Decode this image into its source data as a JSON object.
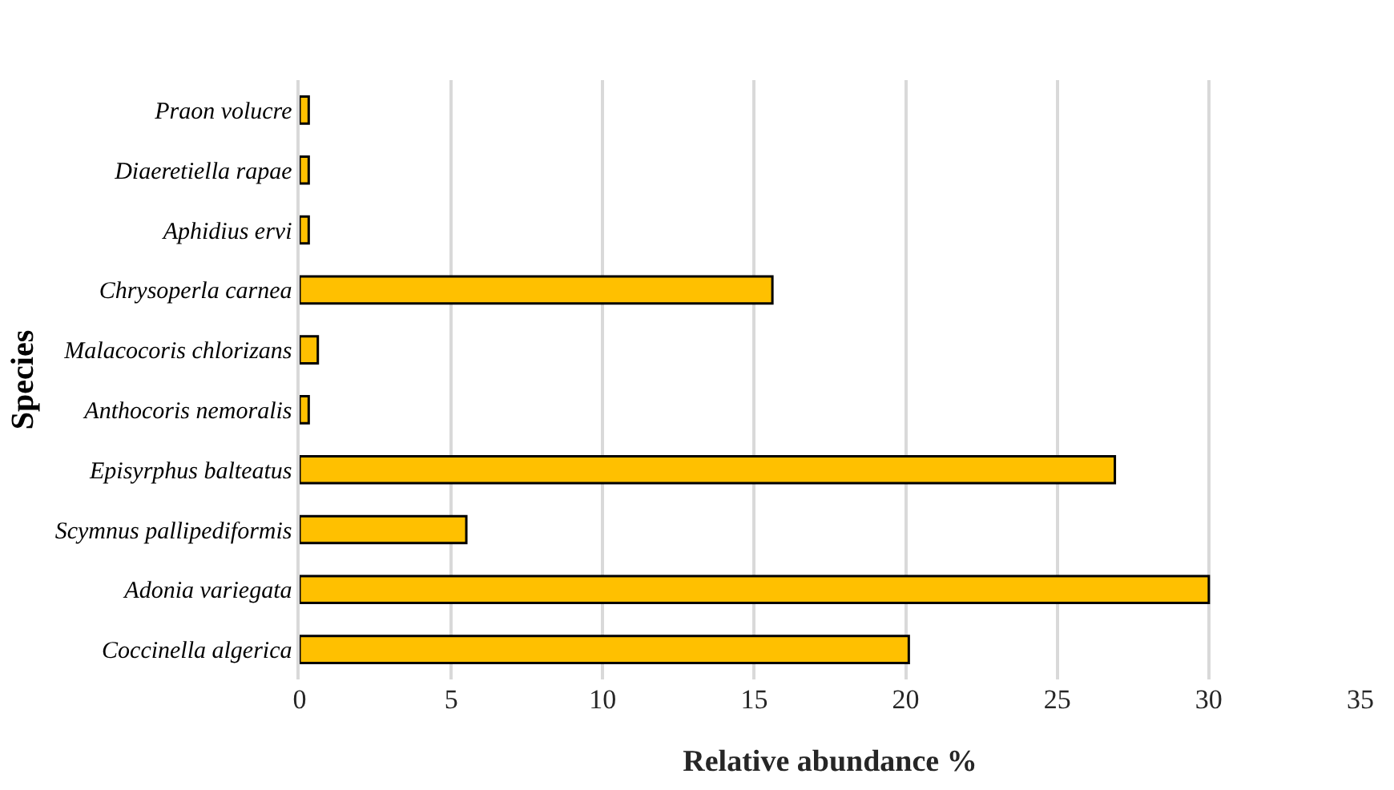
{
  "chart_data": {
    "type": "bar",
    "orientation": "horizontal",
    "xlabel": "Relative abundance %",
    "ylabel": "Species",
    "categories": [
      "Praon volucre",
      "Diaeretiella rapae",
      "Aphidius ervi",
      "Chrysoperla carnea",
      "Malacocoris chlorizans",
      "Anthocoris nemoralis",
      "Episyrphus balteatus",
      "Scymnus pallipediformis",
      "Adonia variegata",
      "Coccinella algerica"
    ],
    "values": [
      0.3,
      0.3,
      0.3,
      15.6,
      0.6,
      0.3,
      26.9,
      5.5,
      30.0,
      20.1
    ],
    "color": "#ffc000",
    "xlim": [
      0,
      35
    ],
    "xticks": [
      0,
      5,
      10,
      15,
      20,
      25,
      30,
      35
    ],
    "grid": "x"
  }
}
